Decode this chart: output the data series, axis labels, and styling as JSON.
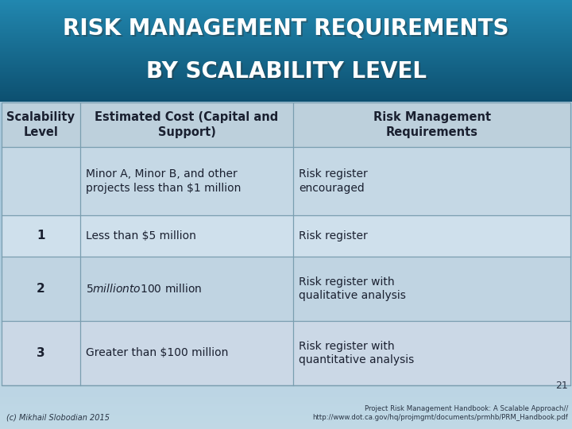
{
  "title_line1": "RISK MANAGEMENT REQUIREMENTS",
  "title_line2": "BY SCALABILITY LEVEL",
  "title_bg_color": "#1a6e94",
  "header_col1": "Scalability\nLevel",
  "header_col2": "Estimated Cost (Capital and\nSupport)",
  "header_col3": "Risk Management\nRequirements",
  "rows": [
    {
      "col1": "",
      "col2": "Minor A, Minor B, and other\nprojects less than $1 million",
      "col3": "Risk register\nencouraged"
    },
    {
      "col1": "1",
      "col2": "Less than $5 million",
      "col3": "Risk register"
    },
    {
      "col1": "2",
      "col2": "$5 million to $100 million",
      "col3": "Risk register with\nqualitative analysis"
    },
    {
      "col1": "3",
      "col2": "Greater than $100 million",
      "col3": "Risk register with\nquantitative analysis"
    }
  ],
  "header_bg": "#b8cdd8",
  "row_bg_light": "#ccdce8",
  "row_bg_medium": "#b8ccda",
  "table_text_color": "#1a2030",
  "header_text_color": "#1a2030",
  "title_text_color": "#ffffff",
  "footer_left": "(c) Mikhail Slobodian 2015",
  "footer_right": "Project Risk Management Handbook: A Scalable Approach//\nhttp://www.dot.ca.gov/hq/projmgmt/documents/prmhb/PRM_Handbook.pdf",
  "page_number": "21",
  "bg_color": "#a8c8dc",
  "slide_bg_bottom": "#c8dce8"
}
